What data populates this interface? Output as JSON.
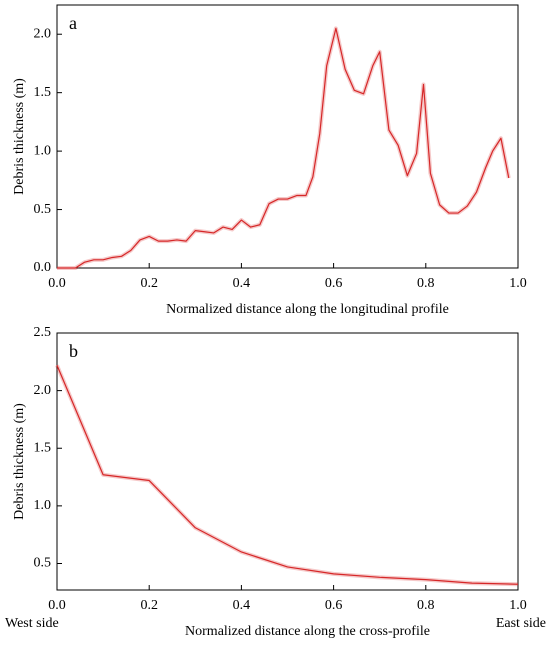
{
  "chart_data": [
    {
      "type": "line",
      "panel": "a",
      "xlabel": "Normalized distance along the longitudinal profile",
      "ylabel": "Debris thickness (m)",
      "x": [
        0,
        0.02,
        0.04,
        0.06,
        0.08,
        0.1,
        0.12,
        0.14,
        0.16,
        0.18,
        0.2,
        0.22,
        0.24,
        0.26,
        0.28,
        0.3,
        0.32,
        0.34,
        0.36,
        0.38,
        0.4,
        0.42,
        0.44,
        0.46,
        0.48,
        0.5,
        0.52,
        0.54,
        0.555,
        0.57,
        0.585,
        0.605,
        0.625,
        0.645,
        0.665,
        0.685,
        0.7,
        0.72,
        0.74,
        0.76,
        0.78,
        0.795,
        0.81,
        0.83,
        0.85,
        0.87,
        0.89,
        0.91,
        0.93,
        0.945,
        0.963,
        0.98
      ],
      "series": [
        {
          "name": "Debris thickness",
          "color": "#d62728",
          "values": [
            0,
            0,
            0,
            0.05,
            0.07,
            0.07,
            0.09,
            0.1,
            0.15,
            0.24,
            0.27,
            0.23,
            0.23,
            0.24,
            0.23,
            0.32,
            0.31,
            0.3,
            0.35,
            0.33,
            0.41,
            0.35,
            0.37,
            0.55,
            0.59,
            0.59,
            0.62,
            0.62,
            0.78,
            1.15,
            1.73,
            2.05,
            1.7,
            1.52,
            1.49,
            1.73,
            1.85,
            1.18,
            1.05,
            0.79,
            0.98,
            1.57,
            0.81,
            0.54,
            0.47,
            0.47,
            0.53,
            0.65,
            0.86,
            1.0,
            1.11,
            0.77
          ]
        }
      ],
      "xlim": [
        0,
        1
      ],
      "ylim": [
        0,
        2.25
      ],
      "xticks": [
        {
          "value": 0,
          "label": "0.0"
        },
        0.2,
        0.4,
        0.6,
        0.8,
        {
          "value": 1,
          "label": "1.0"
        }
      ],
      "yticks": [
        {
          "value": 0,
          "label": "0.0"
        },
        0.5,
        {
          "value": 1,
          "label": "1.0"
        },
        1.5,
        {
          "value": 2,
          "label": "2.0"
        }
      ]
    },
    {
      "type": "line",
      "panel": "b",
      "xlabel": "Normalized distance along the cross-profile",
      "ylabel": "Debris thickness (m)",
      "annotations": [
        "West side",
        "East side"
      ],
      "x": [
        0,
        0.1,
        0.2,
        0.3,
        0.4,
        0.5,
        0.6,
        0.7,
        0.8,
        0.9,
        1.0
      ],
      "series": [
        {
          "name": "Debris thickness",
          "color": "#d62728",
          "values": [
            2.22,
            1.27,
            1.22,
            0.81,
            0.6,
            0.47,
            0.41,
            0.38,
            0.36,
            0.33,
            0.32
          ]
        }
      ],
      "xlim": [
        0,
        1
      ],
      "ylim": [
        0.27,
        2.5
      ],
      "xticks": [
        {
          "value": 0,
          "label": "0.0"
        },
        0.2,
        0.4,
        0.6,
        0.8,
        {
          "value": 1,
          "label": "1.0"
        }
      ],
      "yticks": [
        0.5,
        {
          "value": 1,
          "label": "1.0"
        },
        1.5,
        {
          "value": 2,
          "label": "2.0"
        },
        2.5
      ]
    }
  ]
}
